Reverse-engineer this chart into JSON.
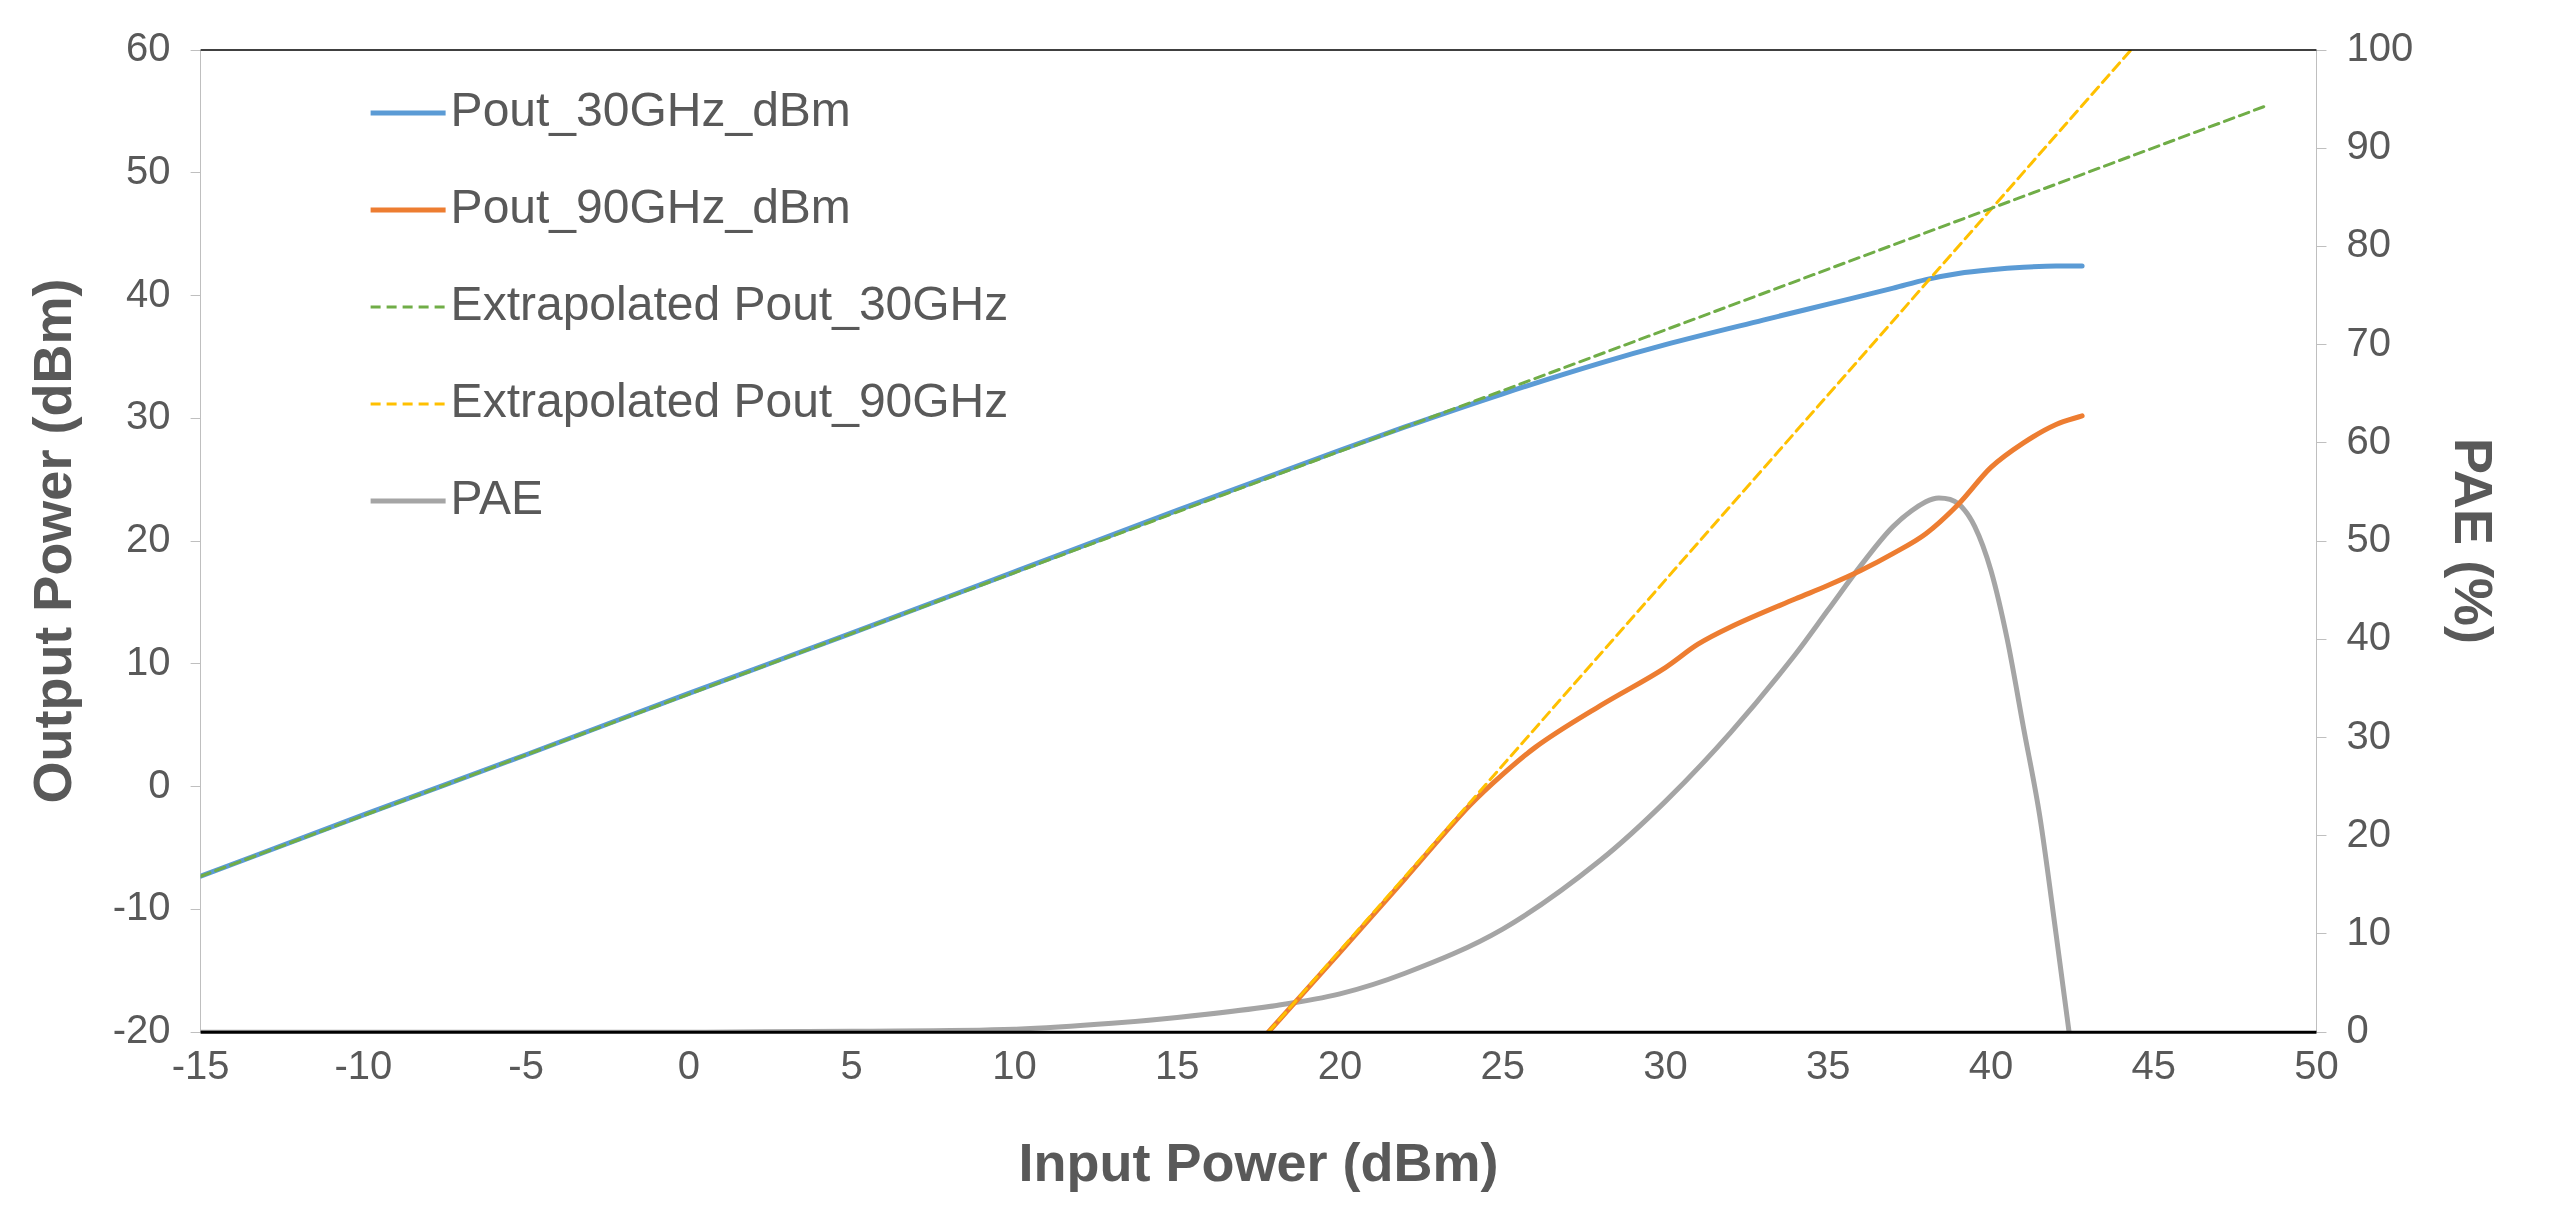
{
  "chart_data": {
    "type": "line",
    "xlabel": "Input Power (dBm)",
    "ylabel": "Output Power (dBm)",
    "y2label": "PAE (%)",
    "xlim": [
      -15,
      50
    ],
    "xticks": [
      -15,
      -10,
      -5,
      0,
      5,
      10,
      15,
      20,
      25,
      30,
      35,
      40,
      45,
      50
    ],
    "ylim": [
      -20,
      60
    ],
    "yticks": [
      -20,
      -10,
      0,
      10,
      20,
      30,
      40,
      50,
      60
    ],
    "y2lim": [
      0,
      100
    ],
    "y2ticks": [
      0,
      10,
      20,
      30,
      40,
      50,
      60,
      70,
      80,
      90,
      100
    ],
    "grid": false,
    "legend": "top left",
    "marker": "none",
    "series": [
      {
        "name": "Pout_30GHz_dBm",
        "color": "#5b9bd5",
        "line_style": "solid",
        "x": [
          -15,
          -10,
          -5,
          0,
          5,
          10,
          15,
          20,
          22,
          25,
          28,
          30,
          33,
          35,
          37,
          38,
          39,
          40,
          41,
          42,
          42.8
        ],
        "values": [
          -7.3,
          -2.3,
          2.6,
          7.6,
          12.5,
          17.5,
          22.5,
          27.4,
          29.3,
          32,
          34.5,
          36,
          38,
          39.3,
          40.6,
          41.3,
          41.8,
          42.1,
          42.3,
          42.4,
          42.4
        ]
      },
      {
        "name": "Pout_90GHz_dBm",
        "color": "#ed7d31",
        "line_style": "solid",
        "x": [
          17.8,
          20,
          22,
          24,
          25,
          26,
          28,
          30,
          31,
          32,
          34,
          35,
          36,
          37,
          38,
          39,
          40,
          41,
          42,
          42.8
        ],
        "values": [
          -20,
          -13.5,
          -7.5,
          -1.5,
          1,
          3.2,
          6.6,
          9.7,
          11.6,
          13,
          15.3,
          16.4,
          17.6,
          19,
          20.6,
          23,
          26,
          28,
          29.5,
          30.2
        ]
      },
      {
        "name": "Extrapolated Pout_30GHz",
        "color": "#70ad47",
        "line_style": "dashed",
        "x": [
          -15,
          48.5
        ],
        "values": [
          -7.3,
          55.5
        ]
      },
      {
        "name": "Extrapolated Pout_90GHz",
        "color": "#ffc000",
        "line_style": "dashed",
        "x": [
          17.8,
          44.3
        ],
        "values": [
          -20,
          60
        ]
      },
      {
        "name": "PAE",
        "color": "#a5a5a5",
        "line_style": "solid",
        "axis": "y2",
        "x": [
          -15,
          0,
          5,
          10,
          13,
          15,
          18,
          20,
          22,
          25,
          28,
          30,
          32,
          34,
          35,
          36,
          37,
          38,
          38.4,
          39,
          39.5,
          40,
          40.5,
          41,
          41.5,
          42,
          42.4
        ],
        "values": [
          0,
          0,
          0.1,
          0.3,
          0.9,
          1.5,
          2.7,
          3.9,
          6,
          10.5,
          17.5,
          23.5,
          30.5,
          38.5,
          43,
          47.5,
          51.5,
          54,
          54.4,
          53.8,
          51.5,
          47,
          40,
          31,
          22,
          10,
          0
        ]
      }
    ]
  }
}
